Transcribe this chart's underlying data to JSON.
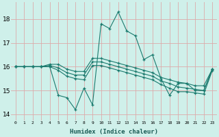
{
  "xlabel": "Humidex (Indice chaleur)",
  "background_color": "#cff0ea",
  "grid_color": "#ddaaaa",
  "line_color": "#1a7a6e",
  "xlim": [
    -0.5,
    23.5
  ],
  "ylim": [
    13.75,
    18.7
  ],
  "yticks": [
    14,
    15,
    16,
    17,
    18
  ],
  "xticks": [
    0,
    1,
    2,
    3,
    4,
    5,
    6,
    7,
    8,
    9,
    10,
    11,
    12,
    13,
    14,
    15,
    16,
    17,
    18,
    19,
    20,
    21,
    22,
    23
  ],
  "series": [
    [
      16.0,
      16.0,
      16.0,
      16.0,
      16.0,
      14.8,
      14.7,
      14.2,
      15.1,
      14.4,
      17.8,
      17.6,
      18.3,
      17.5,
      17.3,
      16.3,
      16.5,
      15.5,
      14.8,
      15.3,
      15.3,
      15.0,
      15.0,
      15.9
    ],
    [
      16.0,
      16.0,
      16.0,
      16.0,
      16.1,
      16.1,
      15.9,
      15.8,
      15.8,
      16.35,
      16.35,
      16.25,
      16.15,
      16.05,
      15.95,
      15.85,
      15.75,
      15.55,
      15.45,
      15.35,
      15.3,
      15.2,
      15.2,
      15.9
    ],
    [
      16.0,
      16.0,
      16.0,
      16.0,
      16.05,
      15.95,
      15.75,
      15.65,
      15.65,
      16.2,
      16.2,
      16.1,
      16.0,
      15.9,
      15.8,
      15.7,
      15.6,
      15.4,
      15.3,
      15.15,
      15.1,
      15.05,
      15.0,
      15.9
    ],
    [
      16.0,
      16.0,
      16.0,
      16.0,
      16.0,
      15.85,
      15.6,
      15.5,
      15.45,
      16.05,
      16.05,
      15.95,
      15.85,
      15.75,
      15.65,
      15.55,
      15.45,
      15.25,
      15.1,
      14.95,
      14.95,
      14.9,
      14.85,
      15.85
    ]
  ]
}
